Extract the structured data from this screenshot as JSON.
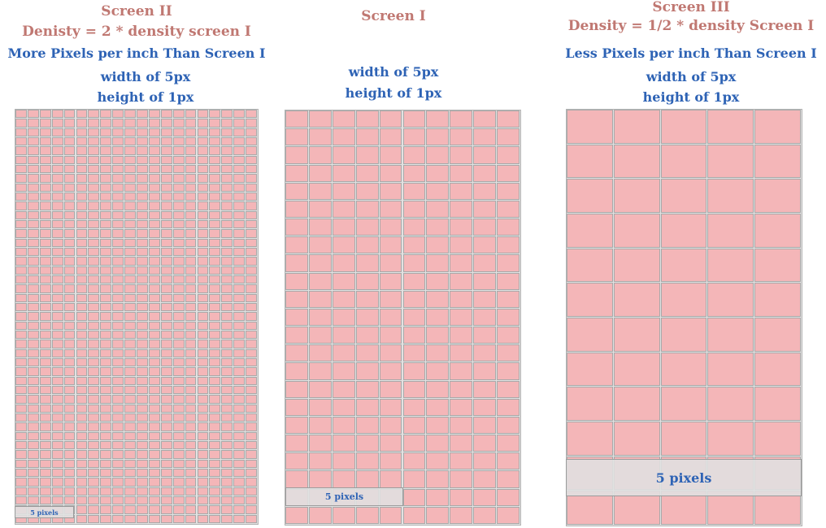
{
  "screens": [
    {
      "id": "screen2",
      "title": "Screen II",
      "density": "Denisty = 2 * density screen I",
      "comparison": "More Pixels per inch Than Screen I",
      "width_text": "width of 5px",
      "height_text": "height of 1px",
      "overlay_label": "5 pixels",
      "grid": {
        "cols": 20,
        "rows": 45
      }
    },
    {
      "id": "screen1",
      "title": "Screen I",
      "density": "",
      "comparison": "",
      "width_text": "width of 5px",
      "height_text": "height of 1px",
      "overlay_label": "5 pixels",
      "grid": {
        "cols": 10,
        "rows": 23
      }
    },
    {
      "id": "screen3",
      "title": "Screen III",
      "density": "Density = 1/2 * density Screen I",
      "comparison": "Less Pixels per inch Than Screen I",
      "width_text": "width of 5px",
      "height_text": "height of 1px",
      "overlay_label": "5 pixels",
      "grid": {
        "cols": 5,
        "rows": 12
      }
    }
  ],
  "colors": {
    "pixel": "#f4b6b8",
    "pixel_border": "#a9a9a9",
    "title_text": "#c07872",
    "info_text": "#2e63b5",
    "overlay": "#e0e0e0"
  }
}
